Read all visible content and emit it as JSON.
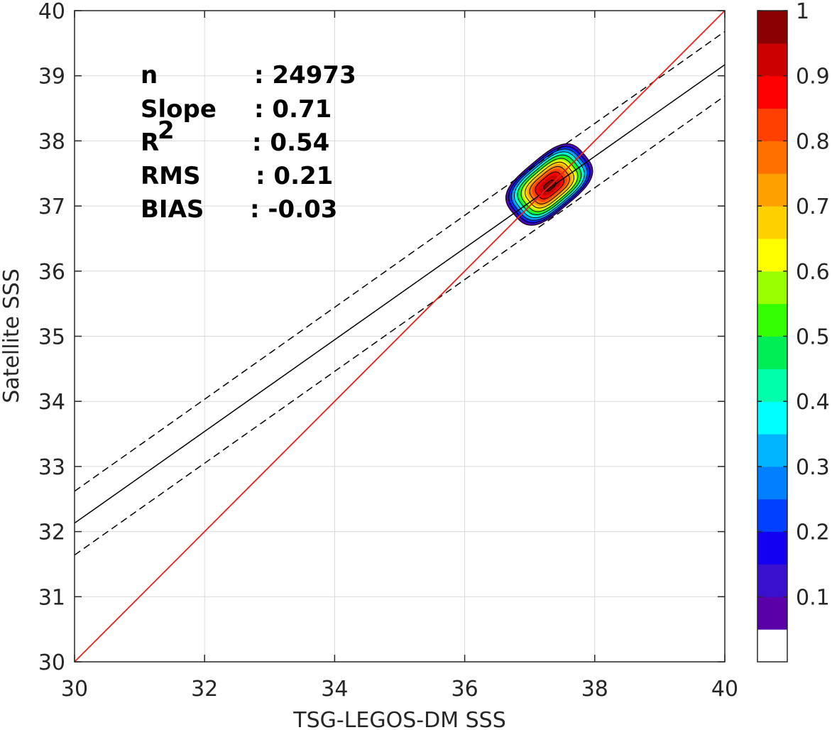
{
  "chart_data": {
    "type": "heatmap",
    "title": "",
    "xlabel": "TSG-LEGOS-DM SSS",
    "ylabel": "Satellite SSS",
    "xlim": [
      30,
      40
    ],
    "ylim": [
      30,
      40
    ],
    "x_ticks": [
      "30",
      "32",
      "34",
      "36",
      "38",
      "40"
    ],
    "y_ticks": [
      "30",
      "31",
      "32",
      "33",
      "34",
      "35",
      "36",
      "37",
      "38",
      "39",
      "40"
    ],
    "grid": true,
    "stats": [
      {
        "label": "n",
        "value": ": 24973"
      },
      {
        "label": "Slope",
        "value": ": 0.71"
      },
      {
        "label": "R",
        "sup": "2",
        "value": ": 0.54"
      },
      {
        "label": "RMS",
        "value": ": 0.21"
      },
      {
        "label": "BIAS",
        "value": ": -0.03"
      }
    ],
    "lines": {
      "one_to_one": {
        "color": "#e8221a",
        "points": [
          [
            30,
            30
          ],
          [
            40,
            40
          ]
        ]
      },
      "regression": {
        "color": "#000000",
        "style": "solid",
        "slope": 0.71,
        "points": [
          [
            30,
            32.13
          ],
          [
            40,
            39.17
          ]
        ]
      },
      "upper_bound": {
        "color": "#000000",
        "style": "dashed",
        "points": [
          [
            30,
            32.62
          ],
          [
            40,
            39.68
          ]
        ]
      },
      "lower_bound": {
        "color": "#000000",
        "style": "dashed",
        "points": [
          [
            30,
            31.64
          ],
          [
            40,
            38.69
          ]
        ]
      }
    },
    "density": {
      "center": [
        37.3,
        37.33
      ],
      "levels": [
        0.1,
        0.2,
        0.3,
        0.4,
        0.5,
        0.6,
        0.7,
        0.8,
        0.9
      ],
      "outer_radius": [
        0.72,
        0.42
      ],
      "angle_deg": 40
    },
    "colorbar": {
      "min": 0,
      "max": 1,
      "ticks": [
        "0.1",
        "0.2",
        "0.3",
        "0.4",
        "0.5",
        "0.6",
        "0.7",
        "0.8",
        "0.9",
        "1"
      ],
      "colors": [
        "#ffffff",
        "#5a00a8",
        "#3a10cf",
        "#1400f0",
        "#0040ff",
        "#0080ff",
        "#00b4ff",
        "#00ffff",
        "#00ffaa",
        "#00ee55",
        "#33ff00",
        "#99ff00",
        "#ffff00",
        "#ffd000",
        "#ffa000",
        "#ff7000",
        "#ff4000",
        "#ff0000",
        "#cc0000",
        "#8b0000"
      ]
    }
  }
}
